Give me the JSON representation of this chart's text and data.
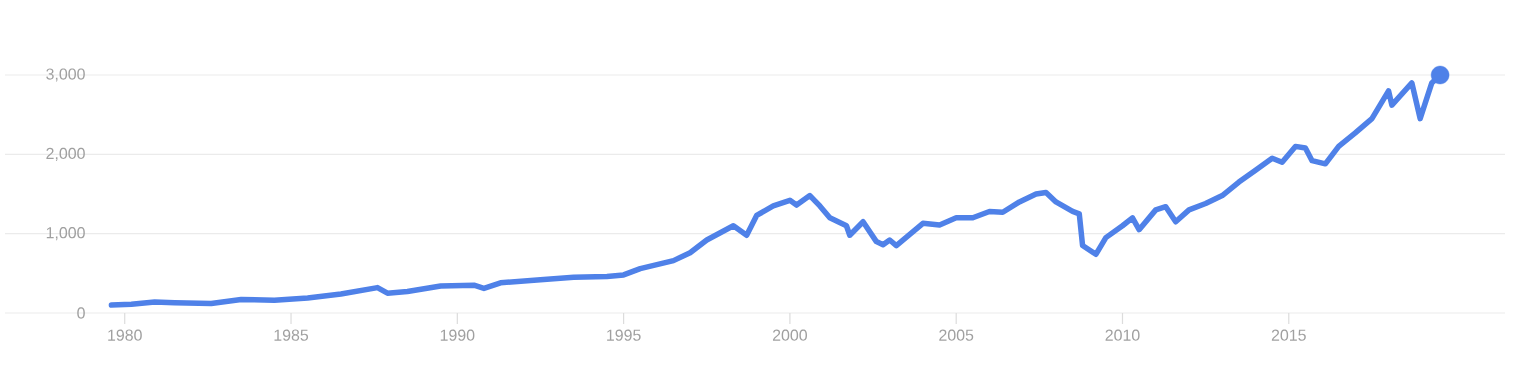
{
  "chart_data": {
    "type": "line",
    "grid": "y",
    "xlim": [
      1976.4,
      2021.5
    ],
    "ylim": [
      0,
      3000
    ],
    "xticks": [
      1980,
      1985,
      1990,
      1995,
      2000,
      2005,
      2010,
      2015
    ],
    "yticks": [
      0,
      {
        "value": 1000,
        "label": "1,000"
      },
      {
        "value": 2000,
        "label": "2,000"
      },
      {
        "value": 3000,
        "label": "3,000"
      }
    ],
    "series": [
      {
        "color": "#4f81e8",
        "x": [
          1979.6,
          1980.2,
          1980.9,
          1981.5,
          1982.6,
          1983.5,
          1984.5,
          1985.5,
          1986.5,
          1987.6,
          1987.9,
          1988.5,
          1989.5,
          1990.5,
          1990.8,
          1991.3,
          1992.5,
          1993.5,
          1994.5,
          1995.0,
          1995.5,
          1996.5,
          1997.0,
          1997.5,
          1998.3,
          1998.7,
          1999.0,
          1999.5,
          2000.0,
          2000.2,
          2000.6,
          2000.9,
          2001.2,
          2001.7,
          2001.8,
          2002.2,
          2002.6,
          2002.8,
          2003.0,
          2003.2,
          2003.6,
          2004.0,
          2004.5,
          2005.0,
          2005.5,
          2006.0,
          2006.4,
          2006.9,
          2007.4,
          2007.7,
          2008.0,
          2008.5,
          2008.7,
          2008.8,
          2009.2,
          2009.5,
          2010.0,
          2010.3,
          2010.5,
          2011.0,
          2011.3,
          2011.6,
          2012.0,
          2012.5,
          2013.0,
          2013.5,
          2014.0,
          2014.5,
          2014.8,
          2015.2,
          2015.5,
          2015.7,
          2016.1,
          2016.5,
          2017.0,
          2017.5,
          2018.0,
          2018.1,
          2018.7,
          2018.95,
          2019.3,
          2019.55
        ],
        "values": [
          100,
          110,
          140,
          130,
          120,
          170,
          160,
          190,
          240,
          320,
          250,
          270,
          340,
          350,
          310,
          380,
          420,
          450,
          460,
          480,
          560,
          660,
          760,
          920,
          1100,
          980,
          1230,
          1350,
          1420,
          1360,
          1480,
          1350,
          1200,
          1100,
          980,
          1150,
          900,
          860,
          920,
          850,
          990,
          1130,
          1110,
          1200,
          1200,
          1280,
          1270,
          1400,
          1500,
          1520,
          1400,
          1280,
          1250,
          850,
          740,
          950,
          1100,
          1200,
          1050,
          1300,
          1340,
          1150,
          1300,
          1380,
          1480,
          1650,
          1800,
          1950,
          1900,
          2100,
          2080,
          1920,
          1880,
          2100,
          2270,
          2450,
          2800,
          2620,
          2900,
          2450,
          2900,
          3000
        ]
      },
      {
        "type": "scatter",
        "marker": "circle",
        "color": "#4f81e8",
        "x": [
          2019.55
        ],
        "values": [
          3000
        ]
      }
    ]
  }
}
